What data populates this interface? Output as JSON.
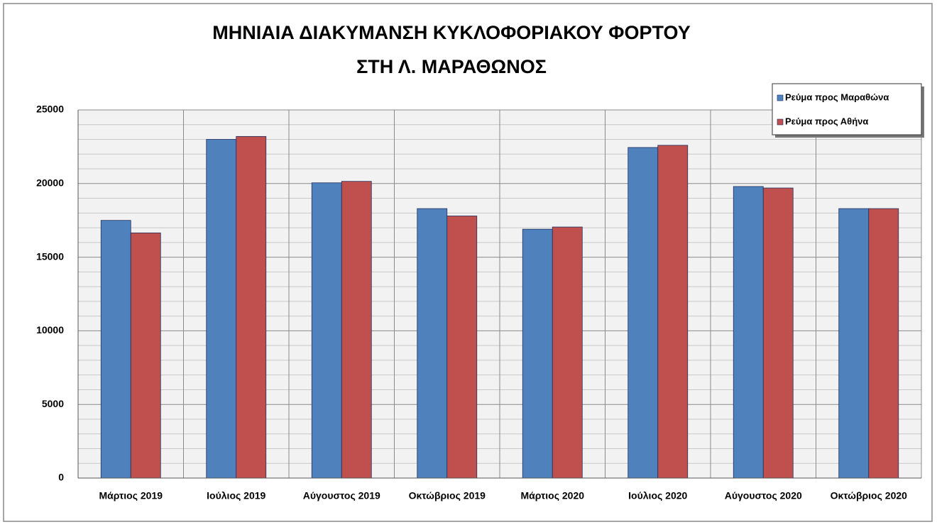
{
  "chart_data": {
    "type": "bar",
    "title": [
      "ΜΗΝΙΑΙΑ ΔΙΑΚΥΜΑΝΣΗ  ΚΥΚΛΟΦΟΡΙΑΚΟΥ  ΦΟΡΤΟΥ",
      "ΣΤΗ Λ. ΜΑΡΑΘΩΝΟΣ"
    ],
    "categories": [
      "Μάρτιος 2019",
      "Ιούλιος 2019",
      "Αύγουστος 2019",
      "Οκτώβριος 2019",
      "Μάρτιος 2020",
      "Ιούλιος 2020",
      "Αύγουστος 2020",
      "Οκτώβριος 2020"
    ],
    "series": [
      {
        "name": "Ρεύμα προς Μαραθώνα",
        "color": "#4f81bd",
        "values": [
          17500,
          23000,
          20050,
          18300,
          16900,
          22450,
          19800,
          18300
        ]
      },
      {
        "name": "Ρεύμα προς Αθήνα",
        "color": "#c0504d",
        "values": [
          16650,
          23200,
          20150,
          17800,
          17050,
          22600,
          19700,
          18300
        ]
      }
    ],
    "ylim": [
      0,
      25000
    ],
    "yticks": [
      0,
      5000,
      10000,
      15000,
      20000,
      25000
    ],
    "yminorticks": [
      1000,
      2000,
      3000,
      4000,
      6000,
      7000,
      8000,
      9000,
      11000,
      12000,
      13000,
      14000,
      16000,
      17000,
      18000,
      19000,
      21000,
      22000,
      23000,
      24000
    ],
    "grid": true,
    "legend": "top-right"
  }
}
